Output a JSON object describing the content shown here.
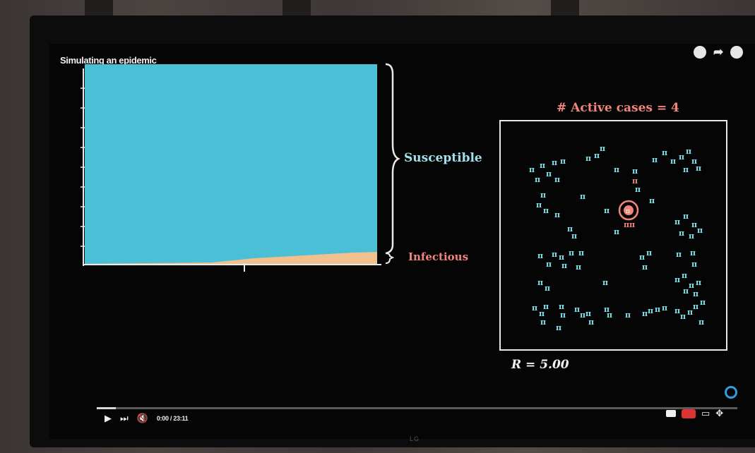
{
  "video": {
    "title": "Simulating an epidemic",
    "time": "0:00 / 23:11",
    "progress_fraction": 0.03
  },
  "chart_labels": {
    "susceptible": "Susceptible",
    "infectious": "Infectious"
  },
  "simulation": {
    "active_cases": "# Active cases = 4",
    "r_value": "R = 5.00"
  },
  "colors": {
    "susceptible": "#4bbfd6",
    "infectious": "#f0c08e",
    "accent_red": "#f0857b",
    "person": "#86e3ec"
  },
  "icons": [
    "play-icon",
    "next-icon",
    "mute-icon",
    "share-icon",
    "subtitles-icon",
    "settings-icon",
    "miniplayer-icon",
    "fullscreen-icon"
  ],
  "monitor_brand": "LG"
}
